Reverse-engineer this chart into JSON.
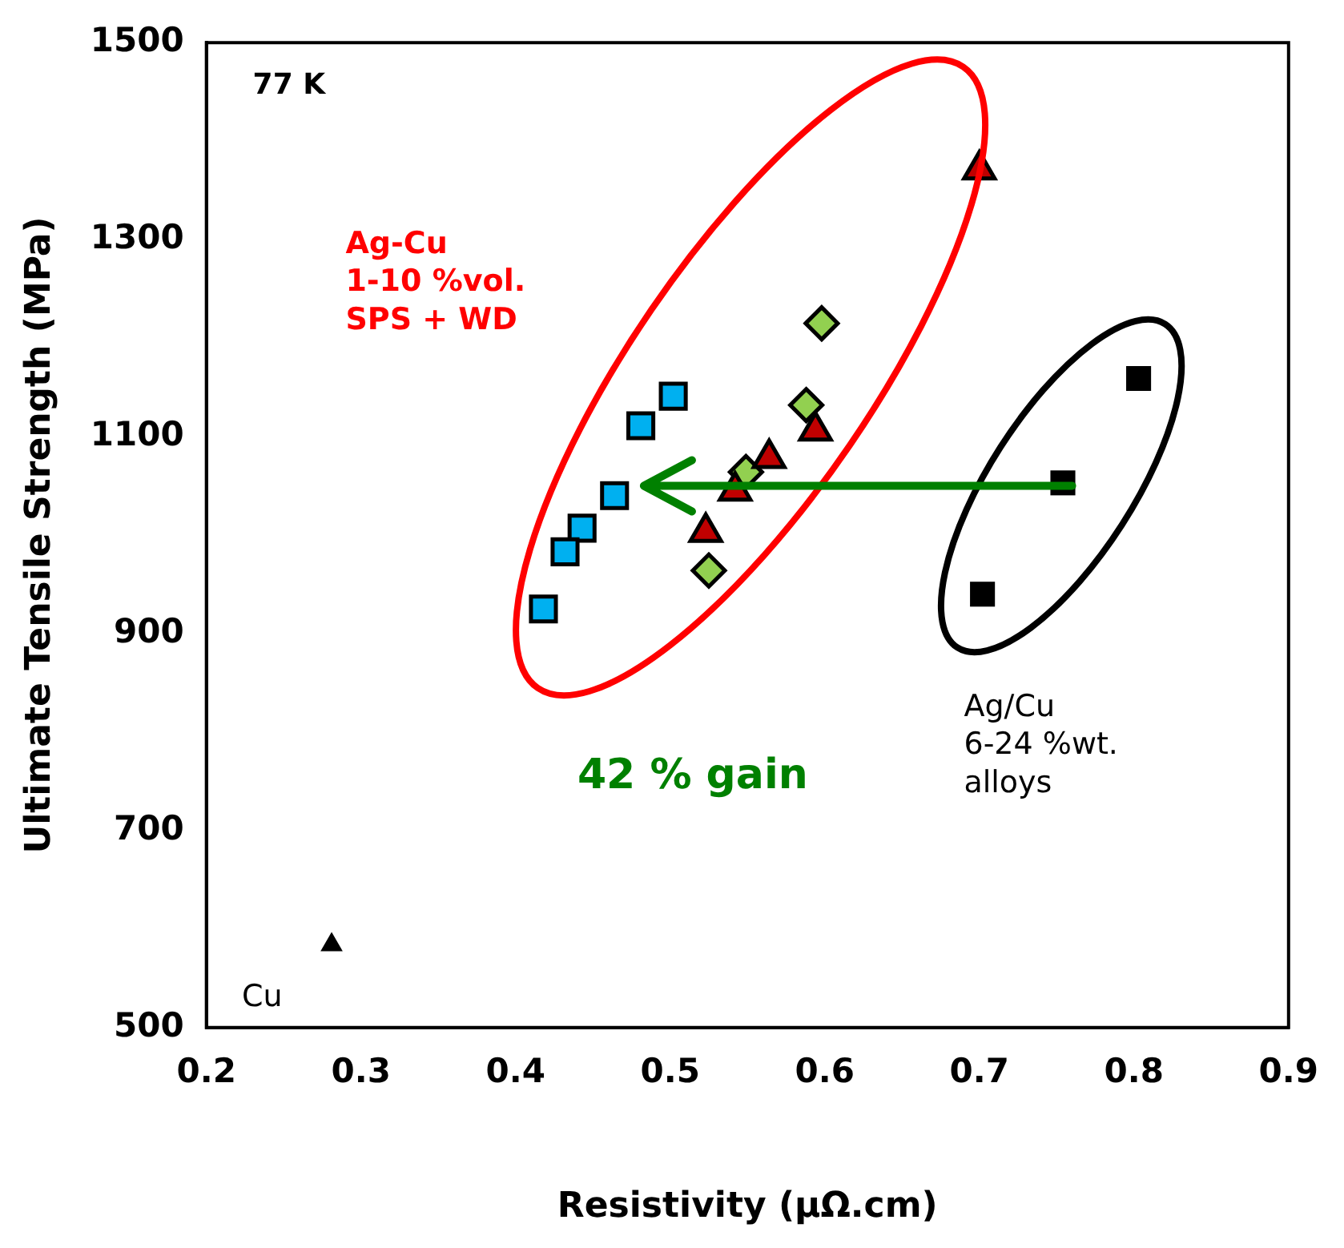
{
  "chart_data": {
    "type": "scatter",
    "xlabel": "Resistivity (µΩ.cm)",
    "ylabel": "Ultimate Tensile Strength (MPa)",
    "xlim": [
      0.2,
      0.9
    ],
    "xticks": [
      0.2,
      0.3,
      0.4,
      0.5,
      0.6,
      0.7,
      0.8,
      0.9
    ],
    "ylim": [
      500,
      1500
    ],
    "yticks": [
      500,
      700,
      900,
      1100,
      1300,
      1500
    ],
    "grid": false,
    "legend": false,
    "series": [
      {
        "color": "#00b0f0",
        "marker": "square",
        "x": [
          0.502,
          0.481,
          0.464,
          0.443,
          0.432,
          0.418
        ],
        "values": [
          1141,
          1111,
          1040,
          1007,
          983,
          925
        ]
      },
      {
        "color": "#c00000",
        "marker": "triangle",
        "x": [
          0.7,
          0.594,
          0.564,
          0.542,
          0.523
        ],
        "values": [
          1371,
          1106,
          1078,
          1045,
          1003
        ]
      },
      {
        "color": "#92d050",
        "marker": "diamond",
        "x": [
          0.598,
          0.588,
          0.549,
          0.525
        ],
        "values": [
          1215,
          1132,
          1064,
          964
        ]
      },
      {
        "color": "#000000",
        "marker": "square",
        "x": [
          0.803,
          0.754,
          0.702
        ],
        "values": [
          1159,
          1053,
          940
        ]
      },
      {
        "color": "#000000",
        "marker": "triangle",
        "x": [
          0.281
        ],
        "values": [
          584
        ]
      }
    ],
    "annotations": [
      "77 K",
      "Ag-Cu\n1-10 %vol.\nSPS + WD",
      "42 % gain",
      "Ag/Cu\n6-24 %wt.\nalloys",
      "Cu"
    ]
  }
}
